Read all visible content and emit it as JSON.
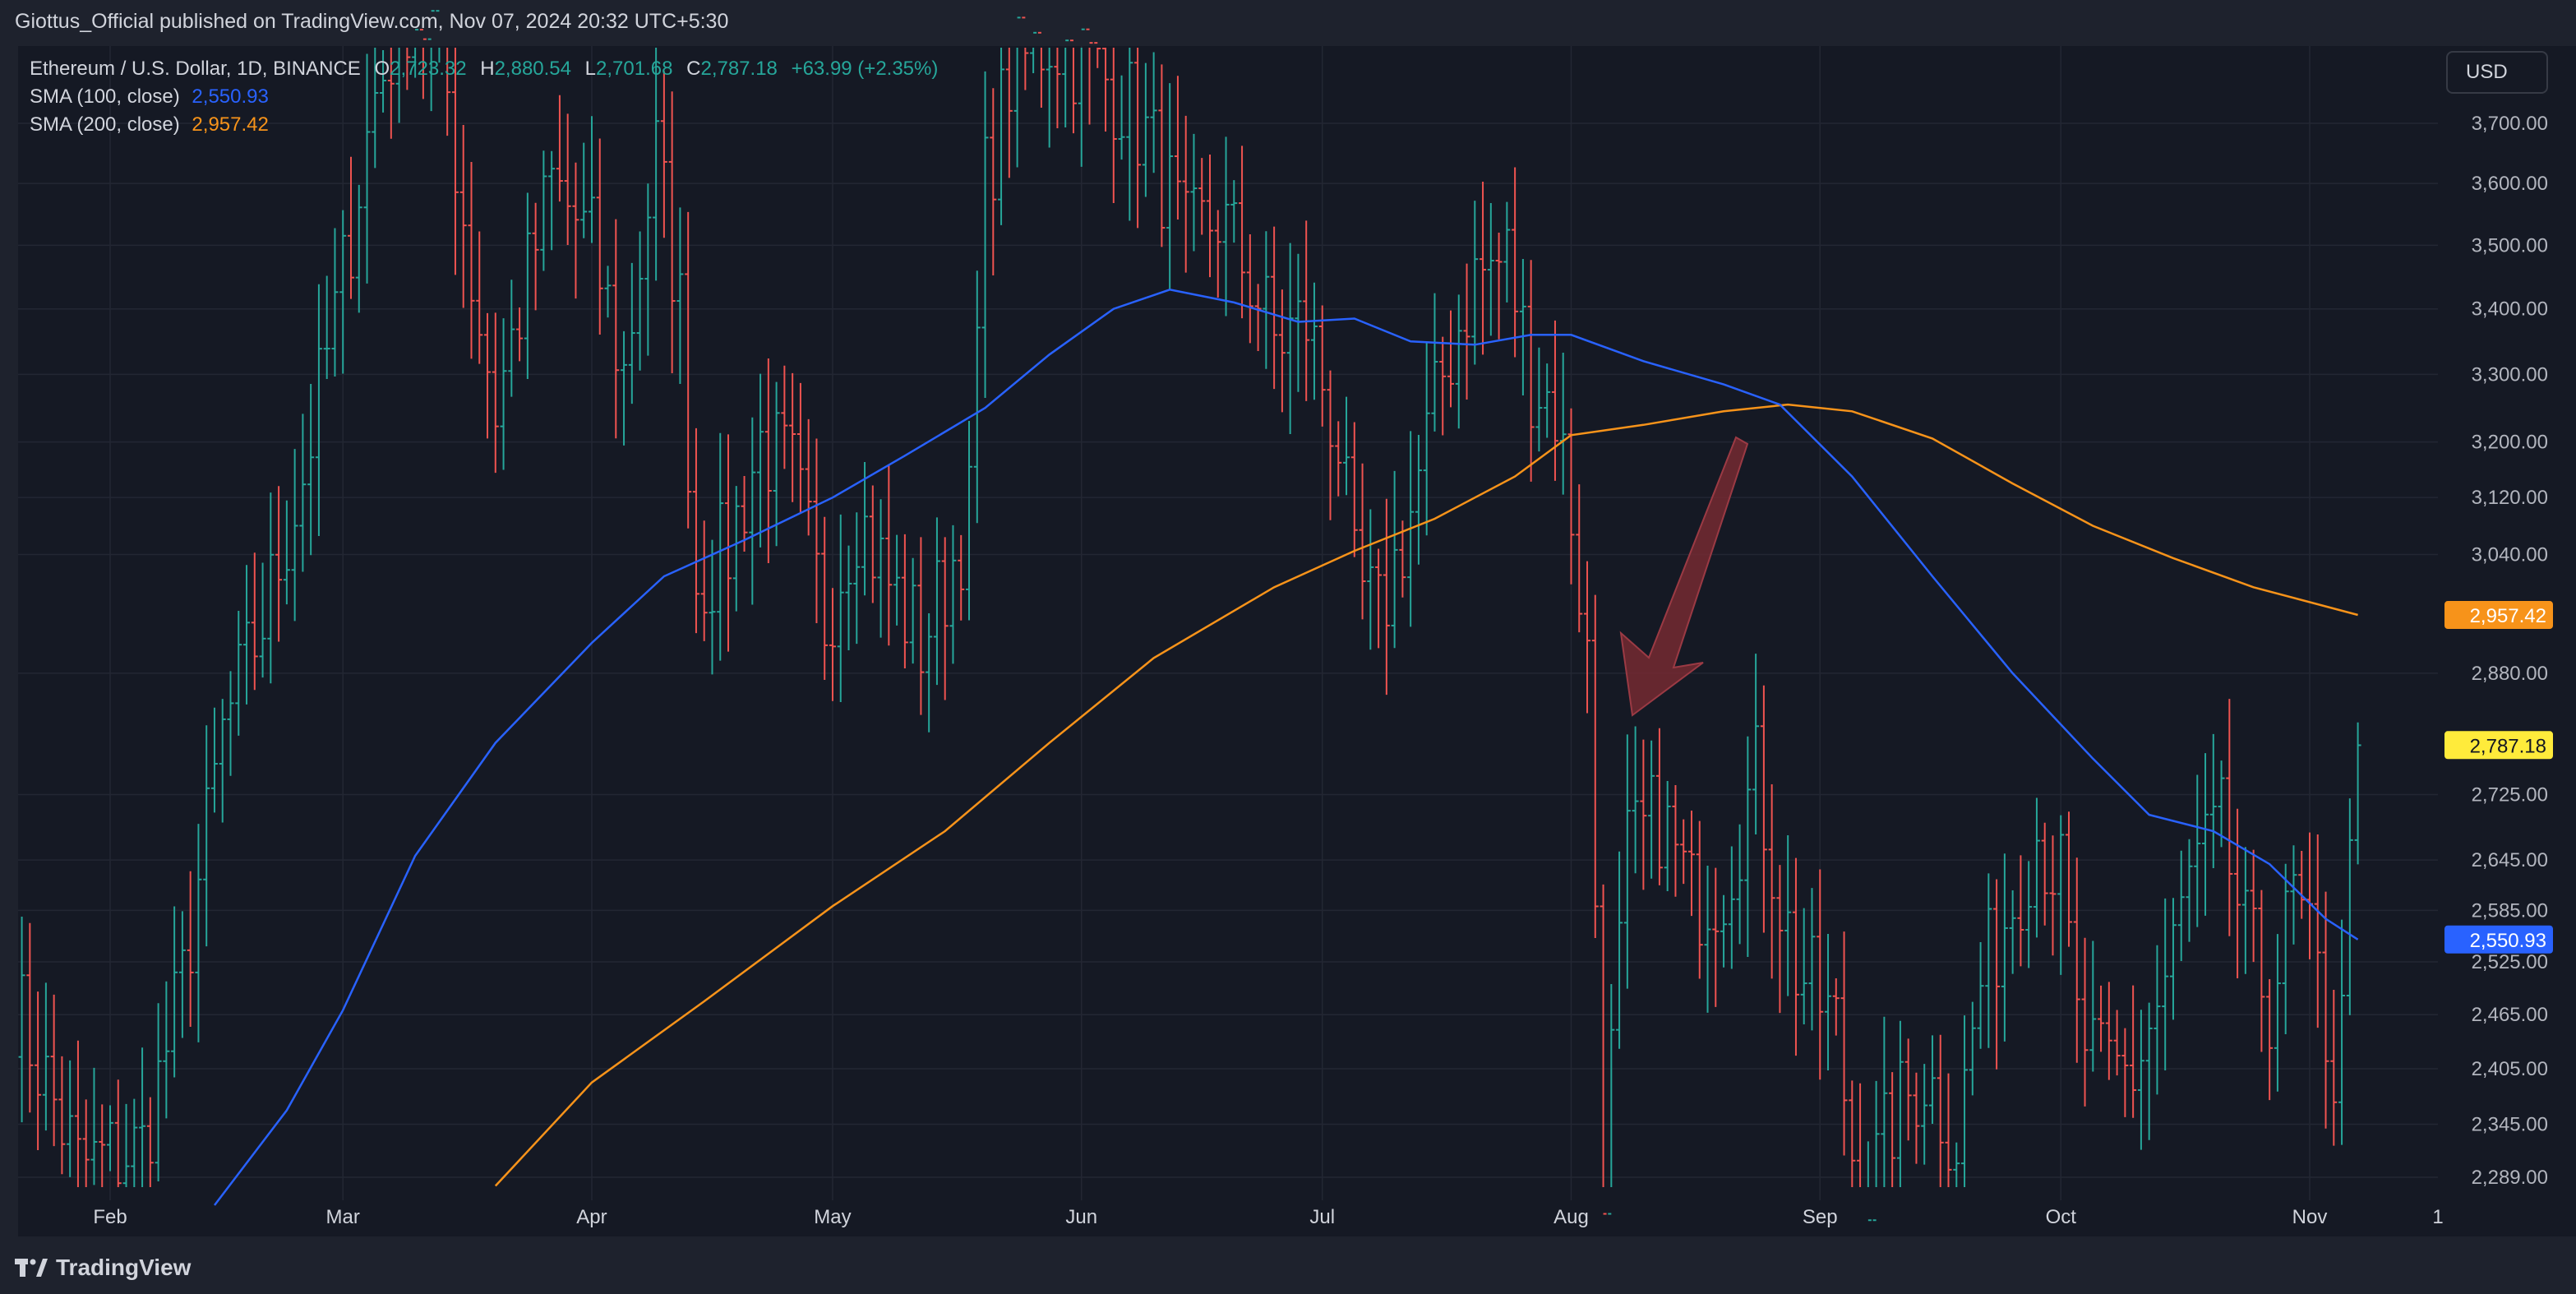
{
  "header": {
    "publisher_line": "Giottus_Official published on TradingView.com, Nov 07, 2024 20:32 UTC+5:30"
  },
  "legend": {
    "symbol": "Ethereum / U.S. Dollar, 1D, BINANCE",
    "open_label": "O",
    "open": "2,723.32",
    "high_label": "H",
    "high": "2,880.54",
    "low_label": "L",
    "low": "2,701.68",
    "close_label": "C",
    "close": "2,787.18",
    "change": "+63.99 (+2.35%)",
    "sma100_label": "SMA (100, close)",
    "sma100_value": "2,550.93",
    "sma200_label": "SMA (200, close)",
    "sma200_value": "2,957.42"
  },
  "currency_button": "USD",
  "footer": {
    "brand": "TradingView"
  },
  "colors": {
    "up": "#26a69a",
    "down": "#ef5350",
    "sma100": "#2962ff",
    "sma200": "#f7931a",
    "background": "#151924",
    "grid": "#232733",
    "arrow": "#7a2a32"
  },
  "chart_data": {
    "type": "candlestick",
    "series_label": "Ethereum / U.S. Dollar, 1D, BINANCE",
    "x_ticks": [
      "Feb",
      "Mar",
      "Apr",
      "May",
      "Jun",
      "Jul",
      "Aug",
      "Sep",
      "Oct",
      "Nov",
      "1"
    ],
    "y_ticks": [
      2289,
      2345,
      2405,
      2465,
      2525,
      2585,
      2645,
      2725,
      2880,
      3040,
      3120,
      3200,
      3300,
      3400,
      3500,
      3600,
      3700
    ],
    "y_tick_labels": [
      "2,289.00",
      "2,345.00",
      "2,405.00",
      "2,465.00",
      "2,525.00",
      "2,585.00",
      "2,645.00",
      "2,725.00",
      "2,880.00",
      "3,040.00",
      "3,120.00",
      "3,200.00",
      "3,300.00",
      "3,400.00",
      "3,500.00",
      "3,600.00",
      "3,700.00"
    ],
    "scale": "log",
    "close_anchors": [
      [
        "2024-01-20",
        2480
      ],
      [
        "2024-01-28",
        2300
      ],
      [
        "2024-02-05",
        2320
      ],
      [
        "2024-02-10",
        2500
      ],
      [
        "2024-02-15",
        2800
      ],
      [
        "2024-02-20",
        2950
      ],
      [
        "2024-02-25",
        3150
      ],
      [
        "2024-03-01",
        3450
      ],
      [
        "2024-03-05",
        3750
      ],
      [
        "2024-03-09",
        3900
      ],
      [
        "2024-03-13",
        3850
      ],
      [
        "2024-03-17",
        3450
      ],
      [
        "2024-03-20",
        3250
      ],
      [
        "2024-03-23",
        3400
      ],
      [
        "2024-03-27",
        3600
      ],
      [
        "2024-04-01",
        3500
      ],
      [
        "2024-04-05",
        3300
      ],
      [
        "2024-04-09",
        3650
      ],
      [
        "2024-04-12",
        3400
      ],
      [
        "2024-04-14",
        3000
      ],
      [
        "2024-04-18",
        3050
      ],
      [
        "2024-04-22",
        3200
      ],
      [
        "2024-04-26",
        3150
      ],
      [
        "2024-04-30",
        2950
      ],
      [
        "2024-05-04",
        3100
      ],
      [
        "2024-05-08",
        3000
      ],
      [
        "2024-05-12",
        2920
      ],
      [
        "2024-05-15",
        3000
      ],
      [
        "2024-05-18",
        3100
      ],
      [
        "2024-05-20",
        3600
      ],
      [
        "2024-05-23",
        3780
      ],
      [
        "2024-05-28",
        3850
      ],
      [
        "2024-06-02",
        3800
      ],
      [
        "2024-06-06",
        3750
      ],
      [
        "2024-06-10",
        3650
      ],
      [
        "2024-06-14",
        3500
      ],
      [
        "2024-06-18",
        3550
      ],
      [
        "2024-06-22",
        3450
      ],
      [
        "2024-06-25",
        3350
      ],
      [
        "2024-06-29",
        3380
      ],
      [
        "2024-07-03",
        3200
      ],
      [
        "2024-07-05",
        3000
      ],
      [
        "2024-07-08",
        2950
      ],
      [
        "2024-07-12",
        3100
      ],
      [
        "2024-07-16",
        3300
      ],
      [
        "2024-07-20",
        3450
      ],
      [
        "2024-07-24",
        3480
      ],
      [
        "2024-07-27",
        3300
      ],
      [
        "2024-07-30",
        3250
      ],
      [
        "2024-08-01",
        3100
      ],
      [
        "2024-08-03",
        2900
      ],
      [
        "2024-08-05",
        2300
      ],
      [
        "2024-08-08",
        2650
      ],
      [
        "2024-08-12",
        2700
      ],
      [
        "2024-08-16",
        2600
      ],
      [
        "2024-08-20",
        2620
      ],
      [
        "2024-08-24",
        2750
      ],
      [
        "2024-08-27",
        2600
      ],
      [
        "2024-08-29",
        2520
      ],
      [
        "2024-09-03",
        2450
      ],
      [
        "2024-09-06",
        2250
      ],
      [
        "2024-09-10",
        2350
      ],
      [
        "2024-09-14",
        2400
      ],
      [
        "2024-09-18",
        2330
      ],
      [
        "2024-09-21",
        2500
      ],
      [
        "2024-09-25",
        2600
      ],
      [
        "2024-09-28",
        2680
      ],
      [
        "2024-10-01",
        2620
      ],
      [
        "2024-10-03",
        2450
      ],
      [
        "2024-10-06",
        2400
      ],
      [
        "2024-10-10",
        2400
      ],
      [
        "2024-10-14",
        2500
      ],
      [
        "2024-10-17",
        2620
      ],
      [
        "2024-10-21",
        2680
      ],
      [
        "2024-10-24",
        2550
      ],
      [
        "2024-10-27",
        2480
      ],
      [
        "2024-10-30",
        2600
      ],
      [
        "2024-11-02",
        2500
      ],
      [
        "2024-11-04",
        2400
      ],
      [
        "2024-11-05",
        2450
      ],
      [
        "2024-11-06",
        2723
      ],
      [
        "2024-11-07",
        2787
      ]
    ],
    "sma100": {
      "label": "SMA (100, close)",
      "last_value": 2550.93,
      "points": [
        [
          "2024-02-14",
          2260
        ],
        [
          "2024-02-23",
          2360
        ],
        [
          "2024-03-01",
          2470
        ],
        [
          "2024-03-10",
          2650
        ],
        [
          "2024-03-20",
          2790
        ],
        [
          "2024-04-01",
          2920
        ],
        [
          "2024-04-10",
          3010
        ],
        [
          "2024-04-20",
          3060
        ],
        [
          "2024-05-01",
          3120
        ],
        [
          "2024-05-10",
          3180
        ],
        [
          "2024-05-20",
          3250
        ],
        [
          "2024-05-28",
          3330
        ],
        [
          "2024-06-05",
          3400
        ],
        [
          "2024-06-12",
          3430
        ],
        [
          "2024-06-20",
          3410
        ],
        [
          "2024-06-28",
          3380
        ],
        [
          "2024-07-05",
          3385
        ],
        [
          "2024-07-12",
          3350
        ],
        [
          "2024-07-20",
          3345
        ],
        [
          "2024-07-27",
          3360
        ],
        [
          "2024-08-01",
          3360
        ],
        [
          "2024-08-10",
          3320
        ],
        [
          "2024-08-20",
          3285
        ],
        [
          "2024-08-27",
          3255
        ],
        [
          "2024-09-05",
          3150
        ],
        [
          "2024-09-15",
          3010
        ],
        [
          "2024-09-25",
          2880
        ],
        [
          "2024-10-05",
          2770
        ],
        [
          "2024-10-12",
          2700
        ],
        [
          "2024-10-20",
          2680
        ],
        [
          "2024-10-27",
          2640
        ],
        [
          "2024-11-03",
          2575
        ],
        [
          "2024-11-07",
          2550.93
        ]
      ]
    },
    "sma200": {
      "label": "SMA (200, close)",
      "last_value": 2957.42,
      "points": [
        [
          "2024-03-20",
          2280
        ],
        [
          "2024-04-01",
          2390
        ],
        [
          "2024-04-15",
          2480
        ],
        [
          "2024-05-01",
          2590
        ],
        [
          "2024-05-15",
          2680
        ],
        [
          "2024-05-28",
          2790
        ],
        [
          "2024-06-10",
          2900
        ],
        [
          "2024-06-25",
          2995
        ],
        [
          "2024-07-05",
          3045
        ],
        [
          "2024-07-15",
          3090
        ],
        [
          "2024-07-25",
          3150
        ],
        [
          "2024-08-01",
          3210
        ],
        [
          "2024-08-10",
          3225
        ],
        [
          "2024-08-20",
          3245
        ],
        [
          "2024-08-28",
          3255
        ],
        [
          "2024-09-05",
          3245
        ],
        [
          "2024-09-15",
          3205
        ],
        [
          "2024-09-25",
          3140
        ],
        [
          "2024-10-05",
          3080
        ],
        [
          "2024-10-15",
          3035
        ],
        [
          "2024-10-25",
          2995
        ],
        [
          "2024-11-07",
          2957.42
        ]
      ]
    },
    "price_labels": [
      {
        "name": "sma200",
        "text": "2,957.42",
        "value": 2957.42,
        "color": "#f7931a"
      },
      {
        "name": "last-price",
        "text": "2,787.18",
        "value": 2787.18,
        "color": "#ffeb3b"
      },
      {
        "name": "sma100",
        "text": "2,550.93",
        "value": 2550.93,
        "color": "#2962ff"
      }
    ]
  }
}
